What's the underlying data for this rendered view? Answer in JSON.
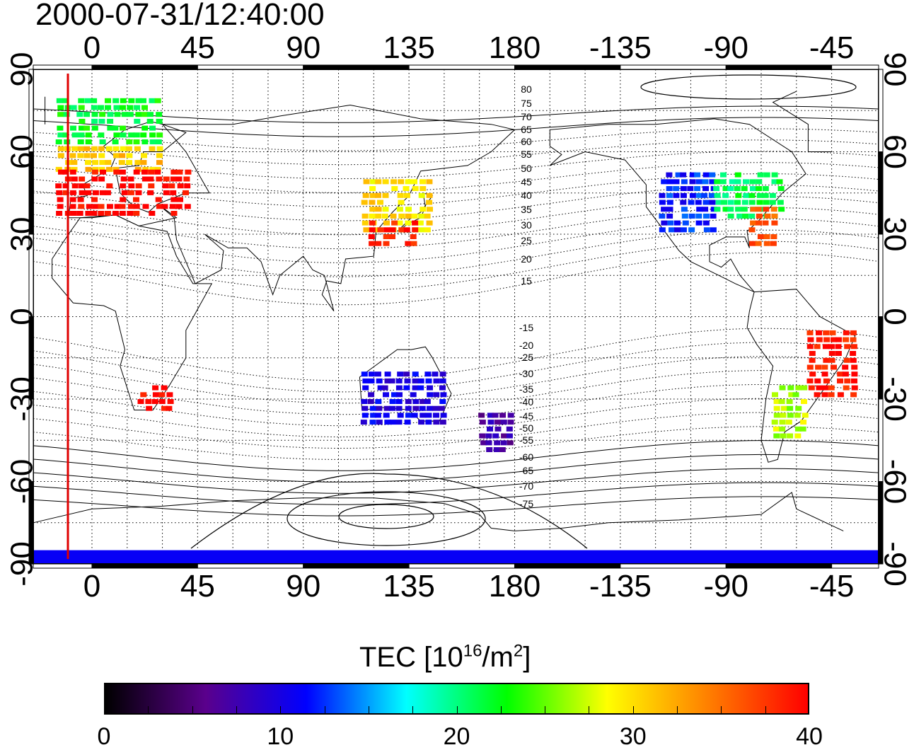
{
  "title": "2000-07-31/12:40:00",
  "map": {
    "lon_ticks_top": [
      "0",
      "45",
      "90",
      "135",
      "180",
      "-135",
      "-90",
      "-45"
    ],
    "lon_ticks_bottom": [
      "0",
      "45",
      "90",
      "135",
      "180",
      "-135",
      "-90",
      "-45"
    ],
    "lat_ticks_left": [
      "90",
      "60",
      "30",
      "0",
      "-30",
      "-60",
      "-90"
    ],
    "lat_ticks_right": [
      "90",
      "60",
      "30",
      "0",
      "-30",
      "-60",
      "-90"
    ],
    "contour_labels": [
      "80",
      "75",
      "70",
      "65",
      "60",
      "55",
      "50",
      "45",
      "40",
      "35",
      "30",
      "25",
      "20",
      "15",
      "-15",
      "-20",
      "-25",
      "-30",
      "-35",
      "-40",
      "-45",
      "-50",
      "-55",
      "-60",
      "-65",
      "-70",
      "-75"
    ],
    "marker_line_color": "#e00000"
  },
  "colorbar": {
    "label_prefix": "TEC  [10",
    "label_exp1": "16",
    "label_mid": "/m",
    "label_exp2": "2",
    "label_suffix": "]",
    "ticks": [
      "0",
      "10",
      "20",
      "30",
      "40"
    ],
    "colors": [
      "#000000",
      "#5a008c",
      "#0000ff",
      "#00ffff",
      "#00ff00",
      "#ffff00",
      "#ff8000",
      "#ff0000"
    ]
  },
  "chart_data": {
    "type": "heatmap",
    "title": "2000-07-31/12:40:00",
    "xlim": [
      -25,
      335
    ],
    "ylim": [
      -90,
      90
    ],
    "value_range": [
      0,
      40
    ],
    "regions": [
      {
        "lon_min": -15,
        "lon_max": 30,
        "lat_min": 62,
        "lat_max": 78,
        "tec": 22
      },
      {
        "lon_min": -15,
        "lon_max": 30,
        "lat_min": 52,
        "lat_max": 62,
        "tec": 31
      },
      {
        "lon_min": -15,
        "lon_max": 40,
        "lat_min": 36,
        "lat_max": 52,
        "tec": 40
      },
      {
        "lon_min": 115,
        "lon_max": 145,
        "lat_min": 30,
        "lat_max": 48,
        "tec": 30
      },
      {
        "lon_min": 118,
        "lon_max": 138,
        "lat_min": 25,
        "lat_max": 34,
        "tec": 39
      },
      {
        "lon_min": -118,
        "lon_max": -95,
        "lat_min": 30,
        "lat_max": 52,
        "tec": 12
      },
      {
        "lon_min": -95,
        "lon_max": -65,
        "lat_min": 35,
        "lat_max": 52,
        "tec": 21
      },
      {
        "lon_min": -80,
        "lon_max": -70,
        "lat_min": 25,
        "lat_max": 38,
        "tec": 36
      },
      {
        "lon_min": -55,
        "lon_max": -35,
        "lat_min": -30,
        "lat_max": -5,
        "tec": 39
      },
      {
        "lon_min": -70,
        "lon_max": -55,
        "lat_min": -45,
        "lat_max": -25,
        "tec": 27
      },
      {
        "lon_min": 20,
        "lon_max": 35,
        "lat_min": -35,
        "lat_max": -25,
        "tec": 40
      },
      {
        "lon_min": 115,
        "lon_max": 150,
        "lat_min": -40,
        "lat_max": -20,
        "tec": 10
      },
      {
        "lon_min": 165,
        "lon_max": 180,
        "lat_min": -50,
        "lat_max": -35,
        "tec": 7
      },
      {
        "lon_min": -25,
        "lon_max": 335,
        "lat_min": -90,
        "lat_max": -85,
        "tec": 11
      }
    ]
  }
}
